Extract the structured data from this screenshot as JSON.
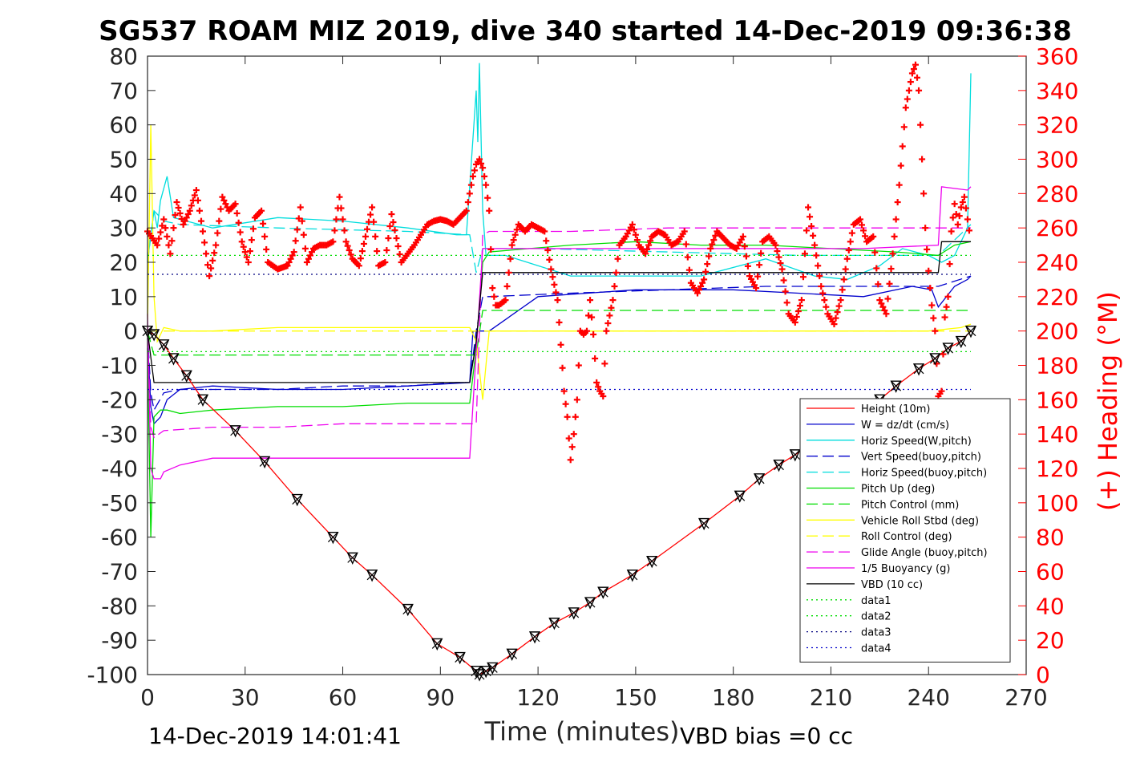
{
  "chart_data": {
    "type": "line",
    "title": "SG537 ROAM MIZ 2019, dive 340 started 14-Dec-2019 09:36:38",
    "xlabel": "Time (minutes)",
    "ylabel": "",
    "y2label": "(+) Heading (°M)",
    "xlim": [
      0,
      270
    ],
    "ylim": [
      -100,
      80
    ],
    "y2lim": [
      0,
      360
    ],
    "x_ticks": [
      "0",
      "30",
      "60",
      "90",
      "120",
      "150",
      "180",
      "210",
      "240",
      "270"
    ],
    "y_ticks": [
      "-100",
      "-90",
      "-80",
      "-70",
      "-60",
      "-50",
      "-40",
      "-30",
      "-20",
      "-10",
      "0",
      "10",
      "20",
      "30",
      "40",
      "50",
      "60",
      "70",
      "80"
    ],
    "y2_ticks": [
      "0",
      "20",
      "40",
      "60",
      "80",
      "100",
      "120",
      "140",
      "160",
      "180",
      "200",
      "220",
      "240",
      "260",
      "280",
      "300",
      "320",
      "340",
      "360"
    ],
    "grid": false,
    "legend_position": "lower-right",
    "footer_left": "14-Dec-2019 14:01:41",
    "footer_right": "VBD bias =0 cc",
    "series": [
      {
        "name": "Height (10m)",
        "color": "#ff0000",
        "style": "solid",
        "marker": "triangle-x",
        "x": [
          0,
          2,
          5,
          8,
          12,
          17,
          27,
          36,
          46,
          57,
          63,
          69,
          80,
          89,
          96,
          101,
          102,
          104,
          106,
          112,
          119,
          125,
          131,
          136,
          140,
          149,
          155,
          171,
          182,
          188,
          194,
          199,
          225,
          230,
          237,
          242,
          246,
          250,
          253
        ],
        "y": [
          0,
          -1,
          -4,
          -8,
          -13,
          -20,
          -29,
          -38,
          -49,
          -60,
          -66,
          -71,
          -81,
          -91,
          -95,
          -99,
          -100,
          -99,
          -98,
          -94,
          -89,
          -85,
          -82,
          -79,
          -76,
          -71,
          -67,
          -56,
          -48,
          -43,
          -39,
          -36,
          -20,
          -16,
          -11,
          -8,
          -5,
          -3,
          0
        ]
      },
      {
        "name": "W = dz/dt (cm/s)",
        "color": "#0000cc",
        "style": "solid",
        "x": [
          0,
          1,
          2,
          4,
          6,
          10,
          20,
          40,
          60,
          80,
          99,
          100,
          101,
          105,
          120,
          150,
          180,
          200,
          220,
          235,
          241,
          243,
          248,
          252,
          253
        ],
        "y": [
          -2,
          -22,
          -27,
          -25,
          -20,
          -17,
          -16,
          -17,
          -17,
          -16,
          -15,
          0,
          0,
          0,
          10,
          12,
          12,
          11,
          10,
          13,
          12,
          7,
          13,
          15,
          16
        ]
      },
      {
        "name": "Horiz Speed(W,pitch)",
        "color": "#00dddd",
        "style": "solid",
        "x": [
          0,
          1,
          2,
          3,
          4,
          6,
          8,
          12,
          20,
          40,
          60,
          80,
          95,
          98,
          101,
          101.5,
          102,
          103,
          104,
          110,
          130,
          150,
          170,
          190,
          205,
          215,
          225,
          232,
          240,
          244,
          248,
          252,
          253
        ],
        "y": [
          20,
          28,
          35,
          30,
          38,
          45,
          33,
          32,
          30,
          33,
          32,
          30,
          28,
          28,
          70,
          55,
          78,
          35,
          22,
          22,
          16,
          16,
          16,
          21,
          16,
          15,
          19,
          24,
          22,
          20,
          22,
          30,
          75
        ]
      },
      {
        "name": "Vert Speed(buoy,pitch)",
        "color": "#0000cc",
        "style": "dash",
        "x": [
          0,
          1,
          2,
          5,
          10,
          20,
          40,
          60,
          80,
          95,
          99,
          101,
          103,
          105,
          130,
          160,
          190,
          220,
          243,
          253
        ],
        "y": [
          0,
          -18,
          -23,
          -18,
          -17,
          -17,
          -17,
          -16,
          -16,
          -15,
          -15,
          0,
          10,
          10,
          11,
          12,
          13,
          13,
          13,
          16
        ]
      },
      {
        "name": "Horiz Speed(buoy,pitch)",
        "color": "#00dddd",
        "style": "dash",
        "x": [
          0,
          2,
          5,
          10,
          40,
          80,
          99,
          101,
          103,
          120,
          160,
          200,
          243,
          253
        ],
        "y": [
          20,
          35,
          32,
          31,
          30,
          29,
          28,
          17,
          24,
          24,
          23,
          22,
          22,
          31
        ]
      },
      {
        "name": "Pitch Up (deg)",
        "color": "#00dd00",
        "style": "solid",
        "x": [
          0,
          1,
          2,
          4,
          6,
          10,
          20,
          40,
          60,
          80,
          95,
          99,
          101,
          103,
          105,
          130,
          150,
          170,
          190,
          210,
          230,
          243,
          248,
          253
        ],
        "y": [
          -5,
          -60,
          -25,
          -23,
          -23,
          -24,
          -23,
          -22,
          -22,
          -21,
          -21,
          -21,
          -5,
          20,
          23,
          25,
          26,
          25,
          25,
          24,
          23,
          22,
          25,
          26
        ]
      },
      {
        "name": "Pitch Control (mm)",
        "color": "#00dd00",
        "style": "dash",
        "x": [
          0,
          2,
          5,
          99,
          101,
          103,
          253
        ],
        "y": [
          0,
          -7,
          -7,
          -7,
          -7,
          6,
          6
        ]
      },
      {
        "name": "Vehicle Roll Stbd (deg)",
        "color": "#ffff00",
        "style": "solid",
        "x": [
          0,
          1,
          2,
          3,
          5,
          10,
          20,
          40,
          60,
          80,
          99,
          101,
          103,
          105,
          120,
          150,
          180,
          210,
          240,
          250,
          253
        ],
        "y": [
          0,
          60,
          10,
          -3,
          1,
          0,
          0,
          1,
          1,
          1,
          1,
          -3,
          -20,
          0,
          0,
          0,
          0,
          0,
          0,
          1,
          2
        ]
      },
      {
        "name": "Roll Control (deg)",
        "color": "#ffff00",
        "style": "dash",
        "x": [
          0,
          253
        ],
        "y": [
          0,
          0
        ]
      },
      {
        "name": "Glide Angle (buoy,pitch)",
        "color": "#ee00ee",
        "style": "dash",
        "x": [
          0,
          1,
          2,
          5,
          20,
          40,
          60,
          80,
          99,
          101,
          103,
          105,
          130,
          160,
          190,
          220,
          243,
          253
        ],
        "y": [
          0,
          -28,
          -31,
          -29,
          -28,
          -28,
          -27,
          -27,
          -27,
          -27,
          28,
          29,
          29,
          30,
          30,
          30,
          30,
          30
        ]
      },
      {
        "name": "1/5 Buoyancy (g)",
        "color": "#ee00ee",
        "style": "solid",
        "x": [
          0,
          1,
          2,
          3,
          4,
          5,
          10,
          20,
          40,
          60,
          80,
          99,
          101,
          103,
          105,
          130,
          160,
          190,
          220,
          243,
          244,
          252,
          253
        ],
        "y": [
          5,
          -40,
          -43,
          -43,
          -43,
          -41,
          -39,
          -37,
          -37,
          -37,
          -37,
          -37,
          -6,
          24,
          24,
          24,
          24,
          24,
          24,
          25,
          42,
          41,
          42
        ]
      },
      {
        "name": "VBD (10 cc)",
        "color": "#000000",
        "style": "solid",
        "x": [
          0,
          2,
          99,
          101,
          103,
          243,
          244,
          253
        ],
        "y": [
          0,
          -15,
          -15,
          -3,
          17,
          17,
          26,
          26
        ]
      },
      {
        "name": "data1",
        "color": "#00dd00",
        "style": "dot",
        "x": [
          0,
          253
        ],
        "y": [
          22,
          22
        ]
      },
      {
        "name": "data2",
        "color": "#00dd00",
        "style": "dot",
        "x": [
          0,
          253
        ],
        "y": [
          -6,
          -6
        ]
      },
      {
        "name": "data3",
        "color": "#000080",
        "style": "dot",
        "x": [
          0,
          253
        ],
        "y": [
          16.5,
          16.5
        ]
      },
      {
        "name": "data4",
        "color": "#0000cc",
        "style": "dot",
        "x": [
          0,
          253
        ],
        "y": [
          -17,
          -17
        ]
      },
      {
        "name": "(+) Heading (°M)",
        "color": "#ff0000",
        "style": "marker",
        "axis": "y2",
        "x": [
          0,
          3,
          5,
          7,
          9,
          11,
          13,
          15,
          17,
          19,
          21,
          23,
          25,
          27,
          29,
          31,
          33,
          35,
          37,
          40,
          43,
          45,
          47,
          49,
          51,
          53,
          55,
          57,
          59,
          61,
          63,
          65,
          67,
          69,
          71,
          73,
          75,
          78,
          80,
          82,
          84,
          86,
          88,
          90,
          92,
          94,
          96,
          98,
          100,
          101,
          102,
          103,
          104,
          105,
          106,
          107,
          108,
          110,
          112,
          114,
          116,
          118,
          120,
          122,
          124,
          126,
          127,
          128,
          129,
          130,
          131,
          132,
          133,
          134,
          135,
          136,
          137,
          138,
          139,
          140,
          141,
          143,
          145,
          147,
          149,
          151,
          153,
          155,
          157,
          159,
          161,
          163,
          165,
          167,
          169,
          171,
          173,
          175,
          177,
          179,
          181,
          183,
          185,
          187,
          189,
          191,
          193,
          195,
          197,
          199,
          201,
          203,
          205,
          207,
          209,
          211,
          213,
          215,
          217,
          219,
          221,
          223,
          225,
          227,
          229,
          231,
          233,
          235,
          236,
          237,
          238,
          239,
          240,
          241,
          242,
          243,
          244,
          245,
          246,
          247,
          248,
          249,
          250,
          251,
          252,
          253
        ],
        "y": [
          258,
          250,
          265,
          245,
          275,
          262,
          270,
          282,
          258,
          232,
          250,
          278,
          270,
          274,
          252,
          240,
          266,
          270,
          240,
          236,
          238,
          246,
          272,
          240,
          248,
          250,
          250,
          252,
          278,
          252,
          242,
          238,
          255,
          272,
          238,
          240,
          268,
          240,
          245,
          250,
          256,
          262,
          264,
          265,
          264,
          262,
          266,
          270,
          290,
          297,
          300,
          295,
          285,
          270,
          225,
          215,
          215,
          218,
          250,
          262,
          258,
          262,
          260,
          258,
          236,
          218,
          192,
          165,
          150,
          125,
          140,
          160,
          200,
          198,
          200,
          218,
          198,
          170,
          165,
          162,
          200,
          218,
          250,
          255,
          262,
          250,
          245,
          255,
          258,
          256,
          250,
          252,
          258,
          228,
          222,
          230,
          248,
          258,
          254,
          250,
          248,
          255,
          232,
          225,
          252,
          255,
          250,
          236,
          210,
          205,
          218,
          272,
          250,
          226,
          210,
          204,
          218,
          242,
          262,
          265,
          252,
          255,
          218,
          210,
          245,
          285,
          330,
          350,
          355,
          340,
          300,
          260,
          235,
          215,
          200,
          162,
          165,
          208,
          220,
          258,
          274,
          262,
          272,
          278,
          265,
          252
        ]
      }
    ]
  }
}
